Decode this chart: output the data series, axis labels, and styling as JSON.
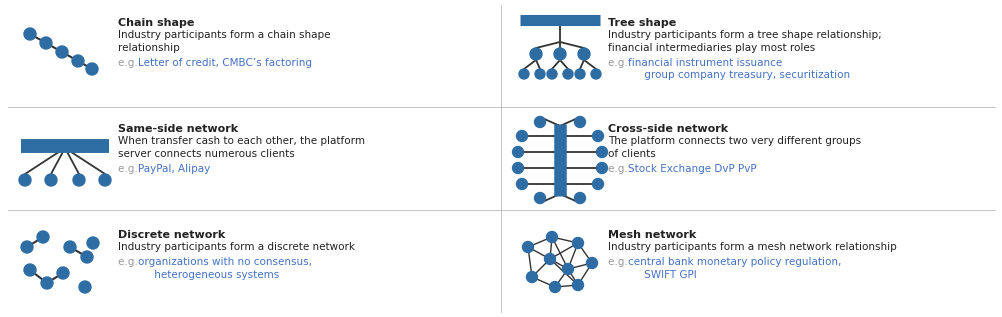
{
  "bg_color": "#ffffff",
  "node_color": "#2e6da4",
  "line_color": "#333333",
  "bar_color": "#2e6da4",
  "gray_text": "#999999",
  "blue_text": "#4472c4",
  "black_text": "#222222",
  "cells": [
    {
      "title": "Chain shape",
      "desc": [
        "Industry participants form a chain shape",
        "relationship"
      ],
      "eg_gray": "e.g. ",
      "eg_blue": [
        "Letter of credit, CMBC’s factoring"
      ],
      "shape": "chain",
      "col": 0,
      "row": 0
    },
    {
      "title": "Tree shape",
      "desc": [
        "Industry participants form a tree shape relationship;",
        "financial intermediaries play most roles"
      ],
      "eg_gray": "e.g. ",
      "eg_blue": [
        "financial instrument issuance",
        "     group company treasury, securitization"
      ],
      "shape": "tree",
      "col": 1,
      "row": 0
    },
    {
      "title": "Same-side network",
      "desc": [
        "When transfer cash to each other, the platform",
        "server connects numerous clients"
      ],
      "eg_gray": "e.g. ",
      "eg_blue": [
        "PayPal, Alipay"
      ],
      "shape": "same_side",
      "col": 0,
      "row": 1
    },
    {
      "title": "Cross-side network",
      "desc": [
        "The platform connects two very different groups",
        "of clients"
      ],
      "eg_gray": "e.g. ",
      "eg_blue": [
        "Stock Exchange DvP PvP"
      ],
      "shape": "cross_side",
      "col": 1,
      "row": 1
    },
    {
      "title": "Discrete network",
      "desc": [
        "Industry participants form a discrete network"
      ],
      "eg_gray": "e.g. ",
      "eg_blue": [
        "organizations with no consensus,",
        "     heterogeneous systems"
      ],
      "shape": "discrete",
      "col": 0,
      "row": 2
    },
    {
      "title": "Mesh network",
      "desc": [
        "Industry participants form a mesh network relationship"
      ],
      "eg_gray": "e.g. ",
      "eg_blue": [
        "central bank monetary policy regulation,",
        "     SWIFT GPI"
      ],
      "shape": "mesh",
      "col": 1,
      "row": 2
    }
  ]
}
